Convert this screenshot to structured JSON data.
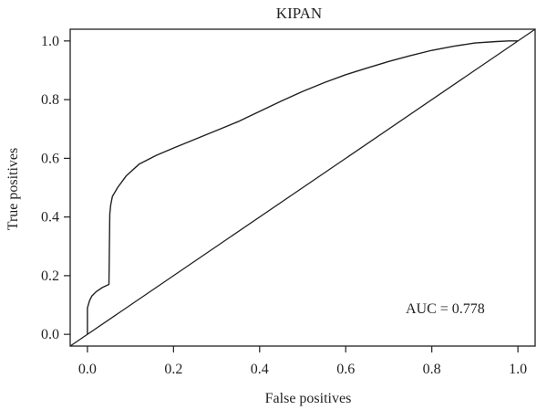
{
  "chart_data": {
    "type": "line",
    "title": "KIPAN",
    "xlabel": "False positives",
    "ylabel": "True positives",
    "xlim": [
      -0.04,
      1.04
    ],
    "ylim": [
      -0.04,
      1.04
    ],
    "x_ticks": [
      0.0,
      0.2,
      0.4,
      0.6,
      0.8,
      1.0
    ],
    "x_tick_labels": [
      "0.0",
      "0.2",
      "0.4",
      "0.6",
      "0.8",
      "1.0"
    ],
    "y_ticks": [
      0.0,
      0.2,
      0.4,
      0.6,
      0.8,
      1.0
    ],
    "y_tick_labels": [
      "0.0",
      "0.2",
      "0.4",
      "0.6",
      "0.8",
      "1.0"
    ],
    "grid": false,
    "annotation": "AUC = 0.778",
    "series": [
      {
        "role": "roc-curve",
        "x": [
          0.0,
          0.0,
          0.005,
          0.01,
          0.02,
          0.035,
          0.05,
          0.052,
          0.054,
          0.058,
          0.062,
          0.07,
          0.09,
          0.12,
          0.16,
          0.2,
          0.25,
          0.3,
          0.35,
          0.4,
          0.45,
          0.5,
          0.55,
          0.6,
          0.65,
          0.7,
          0.75,
          0.8,
          0.85,
          0.9,
          0.95,
          0.98,
          1.0
        ],
        "y": [
          0.0,
          0.09,
          0.115,
          0.13,
          0.145,
          0.16,
          0.17,
          0.41,
          0.44,
          0.47,
          0.48,
          0.5,
          0.54,
          0.58,
          0.61,
          0.635,
          0.665,
          0.695,
          0.725,
          0.76,
          0.795,
          0.828,
          0.858,
          0.885,
          0.908,
          0.93,
          0.95,
          0.968,
          0.982,
          0.993,
          0.998,
          1.0,
          1.0
        ]
      },
      {
        "role": "reference-diagonal",
        "x": [
          -0.04,
          1.04
        ],
        "y": [
          -0.04,
          1.04
        ]
      }
    ]
  },
  "colors": {
    "line": "#231f20",
    "background": "#ffffff"
  }
}
